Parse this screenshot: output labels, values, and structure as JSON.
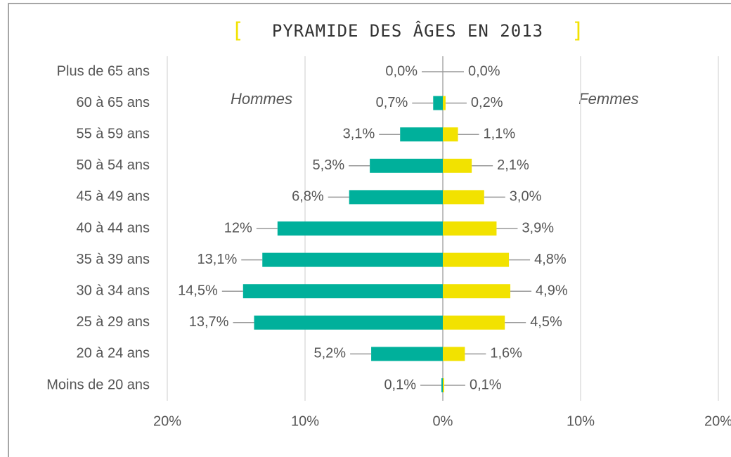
{
  "chart_data": {
    "type": "bar",
    "orientation": "horizontal",
    "title": "PYRAMIDE DES ÂGES EN 2013",
    "title_open": "[",
    "title_close": "]",
    "categories": [
      "Plus de 65 ans",
      "60 à 65 ans",
      "55 à 59 ans",
      "50 à 54 ans",
      "45 à 49 ans",
      "40 à 44 ans",
      "35 à 39 ans",
      "30 à 34 ans",
      "25 à 29 ans",
      "20 à 24 ans",
      "Moins de 20 ans"
    ],
    "series": [
      {
        "name": "Hommes",
        "color": "#00b09b",
        "side": "left",
        "values": [
          0.0,
          0.7,
          3.1,
          5.3,
          6.8,
          12,
          13.1,
          14.5,
          13.7,
          5.2,
          0.1
        ],
        "value_labels": [
          "0,0%",
          "0,7%",
          "3,1%",
          "5,3%",
          "6,8%",
          "12%",
          "13,1%",
          "14,5%",
          "13,7%",
          "5,2%",
          "0,1%"
        ]
      },
      {
        "name": "Femmes",
        "color": "#f2e200",
        "side": "right",
        "values": [
          0.0,
          0.2,
          1.1,
          2.1,
          3.0,
          3.9,
          4.8,
          4.9,
          4.5,
          1.6,
          0.1
        ],
        "value_labels": [
          "0,0%",
          "0,2%",
          "1,1%",
          "2,1%",
          "3,0%",
          "3,9%",
          "4,8%",
          "4,9%",
          "4,5%",
          "1,6%",
          "0,1%"
        ]
      }
    ],
    "xlim": [
      -20,
      20
    ],
    "xticks": [
      {
        "value": -20,
        "label": "20%"
      },
      {
        "value": -10,
        "label": "10%"
      },
      {
        "value": 0,
        "label": "0%"
      },
      {
        "value": 10,
        "label": "10%"
      },
      {
        "value": 20,
        "label": "20%"
      }
    ],
    "grid": true
  }
}
